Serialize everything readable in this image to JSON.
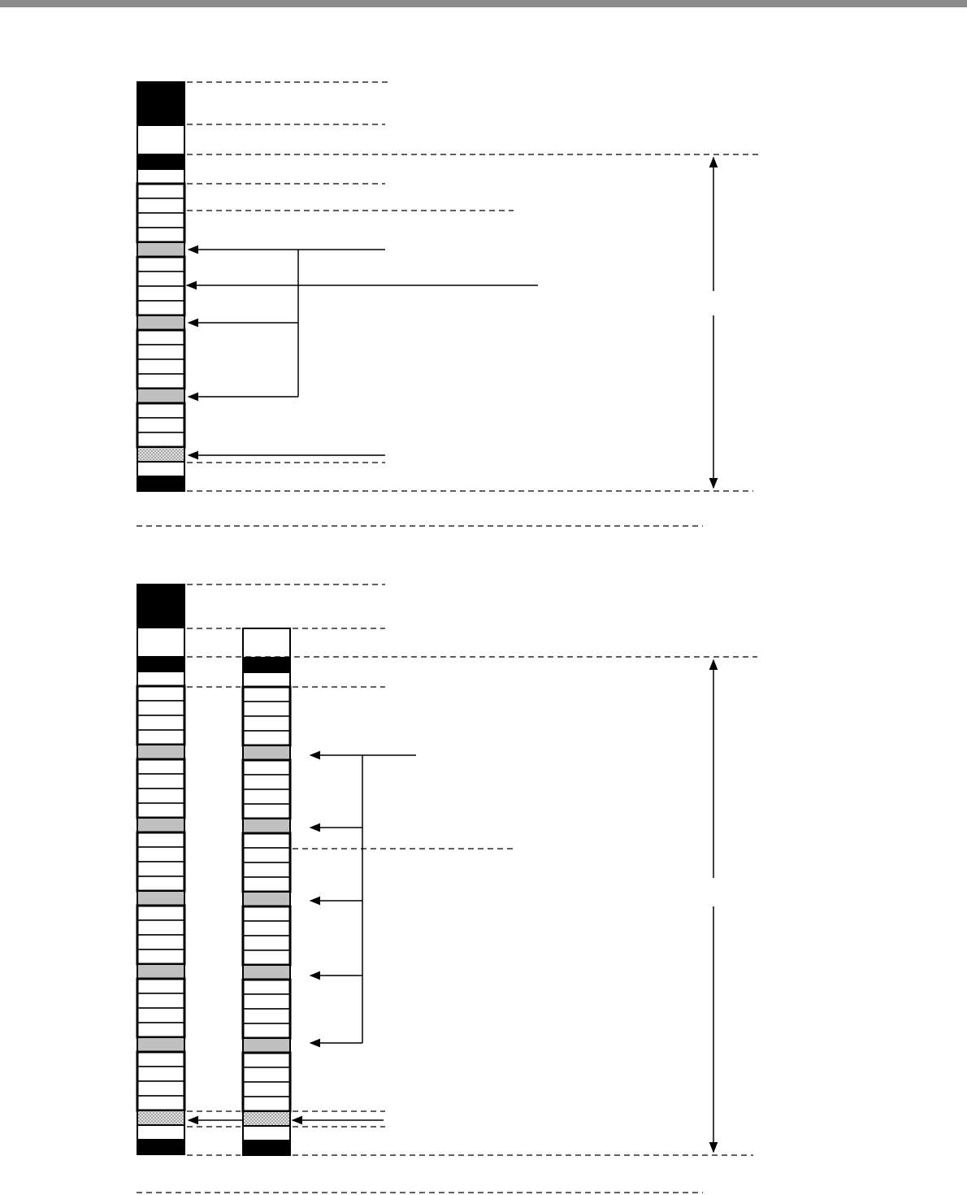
{
  "colors": {
    "header_bar": "#8c8c8c",
    "block_black": "#000000",
    "block_white": "#ffffff",
    "block_gray": "#c0c0c0",
    "block_checker": "#c8c8c8",
    "line": "#000000"
  },
  "diagram": {
    "top_column_sequence": [
      "black-tall",
      "white-tall",
      "black",
      "white",
      "cells-4",
      "gray",
      "cells-4",
      "gray",
      "cells-4",
      "gray",
      "cells-3",
      "checker",
      "white",
      "black"
    ],
    "bottom_left_column_sequence": [
      "black-tall",
      "white-tall",
      "black",
      "white",
      "cells-4",
      "gray",
      "cells-4",
      "gray",
      "cells-4",
      "gray",
      "cells-4",
      "gray",
      "cells-4",
      "gray",
      "cells-4",
      "checker",
      "white",
      "black"
    ],
    "bottom_right_column_sequence": [
      "white-tall",
      "black",
      "white",
      "cells-4",
      "gray",
      "cells-4",
      "gray",
      "cells-4",
      "gray",
      "cells-4",
      "gray",
      "cells-4",
      "gray",
      "cells-4",
      "checker",
      "white",
      "black"
    ]
  }
}
